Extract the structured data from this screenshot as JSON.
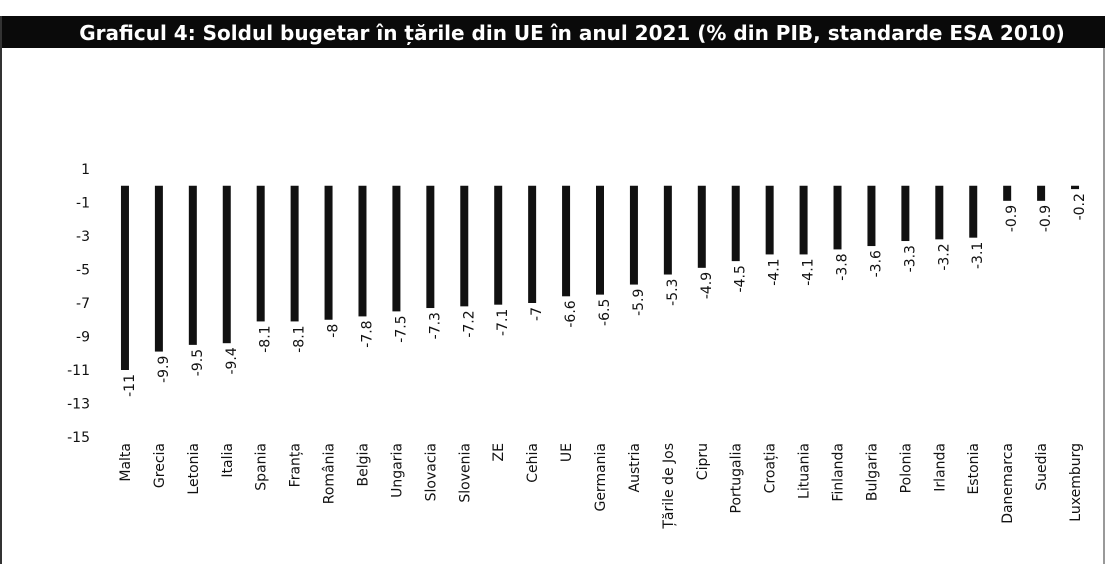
{
  "chart_data": {
    "type": "bar",
    "title": "Graficul 4: Soldul bugetar în țările din UE în anul 2021 (% din PIB, standarde ESA 2010)",
    "categories": [
      "Malta",
      "Grecia",
      "Letonia",
      "Italia",
      "Spania",
      "Franța",
      "România",
      "Belgia",
      "Ungaria",
      "Slovacia",
      "Slovenia",
      "ZE",
      "Cehia",
      "UE",
      "Germania",
      "Austria",
      "Țările de Jos",
      "Cipru",
      "Portugalia",
      "Croația",
      "Lituania",
      "Finlanda",
      "Bulgaria",
      "Polonia",
      "Irlanda",
      "Estonia",
      "Danemarca",
      "Suedia",
      "Luxemburg"
    ],
    "values": [
      -11,
      -9.9,
      -9.5,
      -9.4,
      -8.1,
      -8.1,
      -8,
      -7.8,
      -7.5,
      -7.3,
      -7.2,
      -7.1,
      -7,
      -6.6,
      -6.5,
      -5.9,
      -5.3,
      -4.9,
      -4.5,
      -4.1,
      -4.1,
      -3.8,
      -3.6,
      -3.3,
      -3.2,
      -3.1,
      -0.9,
      -0.9,
      -0.2
    ],
    "color": "#111111",
    "ylim": [
      -15,
      1
    ],
    "yticks": [
      1,
      -1,
      -3,
      -5,
      -7,
      -9,
      -11,
      -13,
      -15
    ],
    "grid": false
  }
}
